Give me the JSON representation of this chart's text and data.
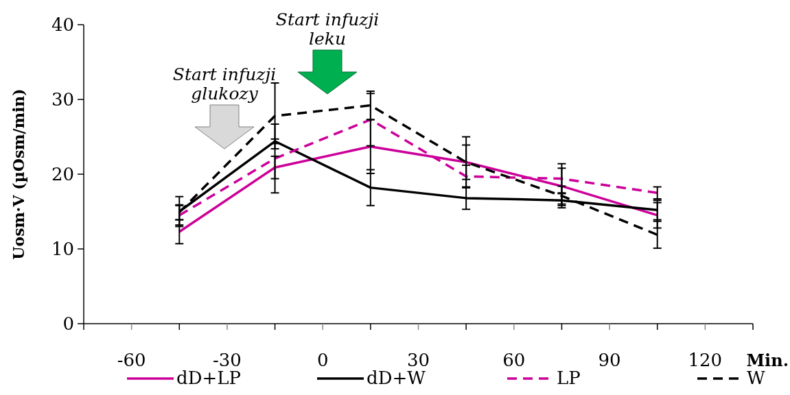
{
  "chart_data": {
    "type": "line",
    "ylabel": "Uosm·V (µOsm/min)",
    "xlabel": "Min.",
    "x": [
      -45,
      -15,
      15,
      45,
      75,
      105
    ],
    "series": [
      {
        "name": "dD+LP",
        "color": "#cc0099",
        "line_style": "solid",
        "values": [
          12.3,
          20.9,
          23.7,
          21.6,
          18.4,
          14.5
        ],
        "errors": [
          1.6,
          1.5,
          3.6,
          3.4,
          2.4,
          1.7
        ]
      },
      {
        "name": "dD+W",
        "color": "#000000",
        "line_style": "solid",
        "values": [
          15.0,
          24.4,
          18.2,
          16.8,
          16.5,
          15.2
        ],
        "errors": [
          2.0,
          0.3,
          2.4,
          1.5,
          1.0,
          1.3
        ]
      },
      {
        "name": "LP",
        "color": "#cc0099",
        "line_style": "dashed",
        "values": [
          14.5,
          22.1,
          27.3,
          19.7,
          19.4,
          17.5
        ],
        "errors": [
          1.3,
          4.6,
          3.5,
          1.5,
          2.0,
          0.8
        ]
      },
      {
        "name": "W",
        "color": "#000000",
        "line_style": "dashed",
        "values": [
          14.9,
          27.8,
          29.2,
          21.6,
          17.1,
          11.9
        ],
        "errors": [
          1.0,
          4.4,
          1.9,
          2.3,
          1.3,
          1.8
        ]
      }
    ],
    "xlim": [
      -75,
      135
    ],
    "xticks": [
      {
        "value": -75,
        "label": null
      },
      -60,
      {
        "value": -45,
        "label": null
      },
      -30,
      {
        "value": -15,
        "label": null
      },
      0,
      {
        "value": 15,
        "label": null
      },
      30,
      {
        "value": 45,
        "label": null
      },
      60,
      {
        "value": 75,
        "label": null
      },
      90,
      {
        "value": 105,
        "label": null
      },
      120,
      {
        "value": 135,
        "label": null
      }
    ],
    "ylim": [
      0,
      40
    ],
    "yticks": [
      0,
      10,
      20,
      30,
      40
    ],
    "grid": false,
    "legend": "bottom",
    "marker": "none",
    "annotations": [
      "Start infuzji glukozy",
      "Start infuzji leku"
    ]
  }
}
